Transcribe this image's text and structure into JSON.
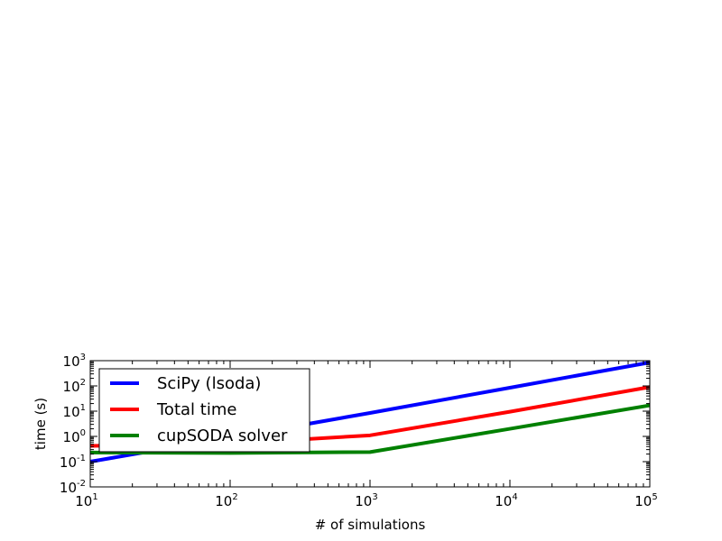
{
  "chart_data": {
    "type": "line",
    "xscale": "log",
    "yscale": "log",
    "xlim": [
      10,
      100000
    ],
    "ylim": [
      0.01,
      1000
    ],
    "xlabel": "# of simulations",
    "ylabel": "time (s)",
    "xticks": [
      {
        "value": 10,
        "base": "10",
        "exp": "1"
      },
      {
        "value": 100,
        "base": "10",
        "exp": "2"
      },
      {
        "value": 1000,
        "base": "10",
        "exp": "3"
      },
      {
        "value": 10000,
        "base": "10",
        "exp": "4"
      },
      {
        "value": 100000,
        "base": "10",
        "exp": "5"
      }
    ],
    "yticks": [
      {
        "value": 0.01,
        "base": "10",
        "exp": "-2"
      },
      {
        "value": 0.1,
        "base": "10",
        "exp": "-1"
      },
      {
        "value": 1,
        "base": "10",
        "exp": "0"
      },
      {
        "value": 10,
        "base": "10",
        "exp": "1"
      },
      {
        "value": 100,
        "base": "10",
        "exp": "2"
      },
      {
        "value": 1000,
        "base": "10",
        "exp": "3"
      }
    ],
    "x": [
      10,
      100,
      1000,
      10000,
      100000
    ],
    "series": [
      {
        "name": "SciPy (lsoda)",
        "color": "#0000ff",
        "values": [
          0.1,
          0.9,
          8.5,
          85,
          850
        ]
      },
      {
        "name": "Total time",
        "color": "#ff0000",
        "values": [
          0.42,
          0.52,
          1.1,
          9.5,
          90
        ]
      },
      {
        "name": "cupSODA solver",
        "color": "#008000",
        "values": [
          0.23,
          0.22,
          0.24,
          2.0,
          17
        ]
      }
    ],
    "legend_position": "upper-left",
    "grid": false
  }
}
